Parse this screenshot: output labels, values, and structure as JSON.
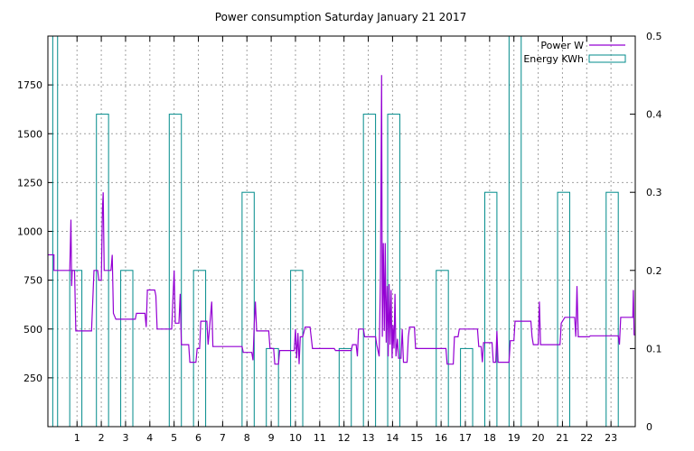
{
  "chart_data": {
    "type": "line",
    "title": "Power consumption Saturday January 21 2017",
    "xlabel": "",
    "ylabel": "",
    "y2label": "",
    "xlim": [
      -0.2,
      24
    ],
    "ylim": [
      0,
      2000
    ],
    "y2lim": [
      0,
      0.5
    ],
    "x_ticks": [
      1,
      2,
      3,
      4,
      5,
      6,
      7,
      8,
      9,
      10,
      11,
      12,
      13,
      14,
      15,
      16,
      17,
      18,
      19,
      20,
      21,
      22,
      23
    ],
    "y_ticks": [
      250,
      500,
      750,
      1000,
      1250,
      1500,
      1750
    ],
    "y2_ticks": [
      0,
      0.1,
      0.2,
      0.3,
      0.4,
      0.5
    ],
    "grid": true,
    "legend_position": "top-right",
    "series": [
      {
        "name": "Power W",
        "axis": "y",
        "style": "line",
        "color": "#9400d3",
        "points": [
          [
            -0.2,
            880
          ],
          [
            0.05,
            880
          ],
          [
            0.05,
            800
          ],
          [
            0.7,
            800
          ],
          [
            0.75,
            1060
          ],
          [
            0.78,
            720
          ],
          [
            0.8,
            800
          ],
          [
            0.9,
            800
          ],
          [
            0.95,
            490
          ],
          [
            1.6,
            490
          ],
          [
            1.65,
            650
          ],
          [
            1.7,
            800
          ],
          [
            1.85,
            800
          ],
          [
            1.9,
            750
          ],
          [
            2.0,
            750
          ],
          [
            2.05,
            1120
          ],
          [
            2.08,
            1200
          ],
          [
            2.12,
            800
          ],
          [
            2.4,
            800
          ],
          [
            2.45,
            880
          ],
          [
            2.5,
            580
          ],
          [
            2.6,
            550
          ],
          [
            3.4,
            550
          ],
          [
            3.45,
            580
          ],
          [
            3.8,
            580
          ],
          [
            3.85,
            510
          ],
          [
            3.9,
            700
          ],
          [
            4.2,
            700
          ],
          [
            4.25,
            670
          ],
          [
            4.3,
            500
          ],
          [
            4.9,
            500
          ],
          [
            5.0,
            800
          ],
          [
            5.05,
            530
          ],
          [
            5.2,
            530
          ],
          [
            5.25,
            680
          ],
          [
            5.3,
            420
          ],
          [
            5.6,
            420
          ],
          [
            5.65,
            330
          ],
          [
            5.9,
            330
          ],
          [
            5.95,
            400
          ],
          [
            6.05,
            400
          ],
          [
            6.1,
            540
          ],
          [
            6.35,
            540
          ],
          [
            6.4,
            420
          ],
          [
            6.55,
            640
          ],
          [
            6.6,
            410
          ],
          [
            7.8,
            410
          ],
          [
            7.85,
            380
          ],
          [
            8.2,
            380
          ],
          [
            8.25,
            340
          ],
          [
            8.3,
            520
          ],
          [
            8.35,
            640
          ],
          [
            8.4,
            490
          ],
          [
            8.9,
            490
          ],
          [
            8.95,
            400
          ],
          [
            9.1,
            400
          ],
          [
            9.15,
            320
          ],
          [
            9.3,
            320
          ],
          [
            9.35,
            390
          ],
          [
            9.95,
            390
          ],
          [
            10.0,
            500
          ],
          [
            10.05,
            350
          ],
          [
            10.1,
            480
          ],
          [
            10.15,
            320
          ],
          [
            10.2,
            460
          ],
          [
            10.3,
            460
          ],
          [
            10.4,
            510
          ],
          [
            10.6,
            510
          ],
          [
            10.7,
            400
          ],
          [
            11.6,
            400
          ],
          [
            11.65,
            390
          ],
          [
            12.3,
            390
          ],
          [
            12.35,
            420
          ],
          [
            12.5,
            420
          ],
          [
            12.55,
            360
          ],
          [
            12.6,
            500
          ],
          [
            12.8,
            500
          ],
          [
            12.85,
            460
          ],
          [
            13.3,
            460
          ],
          [
            13.35,
            420
          ],
          [
            13.45,
            360
          ],
          [
            13.5,
            760
          ],
          [
            13.55,
            1800
          ],
          [
            13.58,
            460
          ],
          [
            13.62,
            940
          ],
          [
            13.66,
            490
          ],
          [
            13.7,
            940
          ],
          [
            13.74,
            430
          ],
          [
            13.78,
            720
          ],
          [
            13.82,
            360
          ],
          [
            13.86,
            730
          ],
          [
            13.9,
            420
          ],
          [
            13.94,
            700
          ],
          [
            13.98,
            350
          ],
          [
            14.02,
            520
          ],
          [
            14.06,
            400
          ],
          [
            14.1,
            680
          ],
          [
            14.14,
            360
          ],
          [
            14.2,
            450
          ],
          [
            14.25,
            350
          ],
          [
            14.35,
            350
          ],
          [
            14.4,
            500
          ],
          [
            14.45,
            330
          ],
          [
            14.6,
            330
          ],
          [
            14.65,
            460
          ],
          [
            14.7,
            510
          ],
          [
            14.9,
            510
          ],
          [
            14.95,
            400
          ],
          [
            16.2,
            400
          ],
          [
            16.25,
            320
          ],
          [
            16.5,
            320
          ],
          [
            16.55,
            460
          ],
          [
            16.7,
            460
          ],
          [
            16.75,
            500
          ],
          [
            17.5,
            500
          ],
          [
            17.55,
            410
          ],
          [
            17.65,
            410
          ],
          [
            17.7,
            330
          ],
          [
            17.75,
            430
          ],
          [
            18.1,
            430
          ],
          [
            18.15,
            330
          ],
          [
            18.25,
            330
          ],
          [
            18.3,
            490
          ],
          [
            18.35,
            330
          ],
          [
            18.8,
            330
          ],
          [
            18.85,
            440
          ],
          [
            19.0,
            440
          ],
          [
            19.05,
            540
          ],
          [
            19.7,
            540
          ],
          [
            19.75,
            460
          ],
          [
            19.8,
            420
          ],
          [
            20.0,
            420
          ],
          [
            20.05,
            640
          ],
          [
            20.1,
            420
          ],
          [
            20.9,
            420
          ],
          [
            20.95,
            530
          ],
          [
            21.1,
            560
          ],
          [
            21.5,
            560
          ],
          [
            21.55,
            460
          ],
          [
            21.6,
            720
          ],
          [
            21.65,
            460
          ],
          [
            22.1,
            460
          ],
          [
            22.15,
            465
          ],
          [
            23.3,
            465
          ],
          [
            23.35,
            420
          ],
          [
            23.4,
            560
          ],
          [
            23.9,
            560
          ],
          [
            23.92,
            700
          ],
          [
            23.95,
            470
          ],
          [
            24.0,
            470
          ]
        ]
      },
      {
        "name": "Energy KWh",
        "axis": "y2",
        "style": "boxes",
        "color": "#008b8b",
        "boxes": [
          {
            "x_start": 0.0,
            "x_end": 0.2,
            "value": 0.6
          },
          {
            "x_start": 0.7,
            "x_end": 1.2,
            "value": 0.2
          },
          {
            "x_start": 1.8,
            "x_end": 2.3,
            "value": 0.4
          },
          {
            "x_start": 2.8,
            "x_end": 3.3,
            "value": 0.2
          },
          {
            "x_start": 4.8,
            "x_end": 5.3,
            "value": 0.4
          },
          {
            "x_start": 5.8,
            "x_end": 6.3,
            "value": 0.2
          },
          {
            "x_start": 7.8,
            "x_end": 8.3,
            "value": 0.3
          },
          {
            "x_start": 8.8,
            "x_end": 9.3,
            "value": 0.1
          },
          {
            "x_start": 9.8,
            "x_end": 10.3,
            "value": 0.2
          },
          {
            "x_start": 11.8,
            "x_end": 12.3,
            "value": 0.1
          },
          {
            "x_start": 12.8,
            "x_end": 13.3,
            "value": 0.4
          },
          {
            "x_start": 13.8,
            "x_end": 14.3,
            "value": 0.4
          },
          {
            "x_start": 15.8,
            "x_end": 16.3,
            "value": 0.2
          },
          {
            "x_start": 16.8,
            "x_end": 17.3,
            "value": 0.1
          },
          {
            "x_start": 17.8,
            "x_end": 18.3,
            "value": 0.3
          },
          {
            "x_start": 18.8,
            "x_end": 19.3,
            "value": 0.6
          },
          {
            "x_start": 20.8,
            "x_end": 21.3,
            "value": 0.3
          },
          {
            "x_start": 22.8,
            "x_end": 23.3,
            "value": 0.3
          }
        ]
      }
    ]
  }
}
